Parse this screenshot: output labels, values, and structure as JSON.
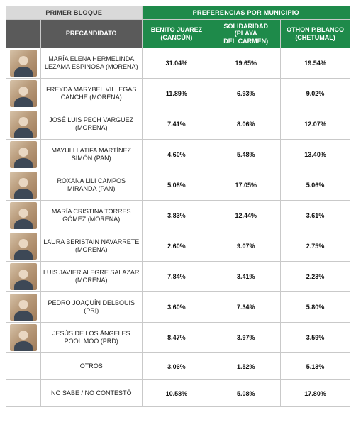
{
  "headers": {
    "block": "PRIMER BLOQUE",
    "prefs": "PREFERENCIAS POR MUNICIPIO",
    "precandidato": "PRECANDIDATO",
    "munis": [
      {
        "line1": "BENITO JUAREZ",
        "line2": "(CANCÚN)"
      },
      {
        "line1": "SOLIDARIDAD (PLAYA",
        "line2": "DEL CARMEN)"
      },
      {
        "line1": "OTHON P.BLANCO",
        "line2": "(CHETUMAL)"
      }
    ]
  },
  "rows": [
    {
      "name": "MARÍA ELENA HERMELINDA LEZAMA ESPINOSA (MORENA)",
      "vals": [
        "31.04%",
        "19.65%",
        "19.54%"
      ],
      "hasPhoto": true
    },
    {
      "name": "FREYDA MARYBEL VILLEGAS CANCHÉ (MORENA)",
      "vals": [
        "11.89%",
        "6.93%",
        "9.02%"
      ],
      "hasPhoto": true
    },
    {
      "name": "JOSÉ LUIS PECH VARGUEZ (MORENA)",
      "vals": [
        "7.41%",
        "8.06%",
        "12.07%"
      ],
      "hasPhoto": true
    },
    {
      "name": "MAYULI LATIFA MARTÍNEZ SIMÓN (PAN)",
      "vals": [
        "4.60%",
        "5.48%",
        "13.40%"
      ],
      "hasPhoto": true
    },
    {
      "name": "ROXANA LILI CAMPOS MIRANDA (PAN)",
      "vals": [
        "5.08%",
        "17.05%",
        "5.06%"
      ],
      "hasPhoto": true
    },
    {
      "name": "MARÍA CRISTINA TORRES GÓMEZ (MORENA)",
      "vals": [
        "3.83%",
        "12.44%",
        "3.61%"
      ],
      "hasPhoto": true
    },
    {
      "name": "LAURA BERISTAIN NAVARRETE (MORENA)",
      "vals": [
        "2.60%",
        "9.07%",
        "2.75%"
      ],
      "hasPhoto": true
    },
    {
      "name": "LUIS JAVIER ALEGRE SALAZAR (MORENA)",
      "vals": [
        "7.84%",
        "3.41%",
        "2.23%"
      ],
      "hasPhoto": true
    },
    {
      "name": "PEDRO JOAQUÍN DELBOUIS (PRI)",
      "vals": [
        "3.60%",
        "7.34%",
        "5.80%"
      ],
      "hasPhoto": true
    },
    {
      "name": "JESÚS DE LOS ÁNGELES POOL MOO (PRD)",
      "vals": [
        "8.47%",
        "3.97%",
        "3.59%"
      ],
      "hasPhoto": true
    },
    {
      "name": "OTROS",
      "vals": [
        "3.06%",
        "1.52%",
        "5.13%"
      ],
      "hasPhoto": false
    },
    {
      "name": "NO SABE / NO CONTESTÓ",
      "vals": [
        "10.58%",
        "5.08%",
        "17.80%"
      ],
      "hasPhoto": false
    }
  ],
  "colors": {
    "block_bg": "#d9d9d9",
    "prefs_bg": "#1e8a4a",
    "sub_bg": "#5a5a5a",
    "border": "#c9c9c9"
  }
}
